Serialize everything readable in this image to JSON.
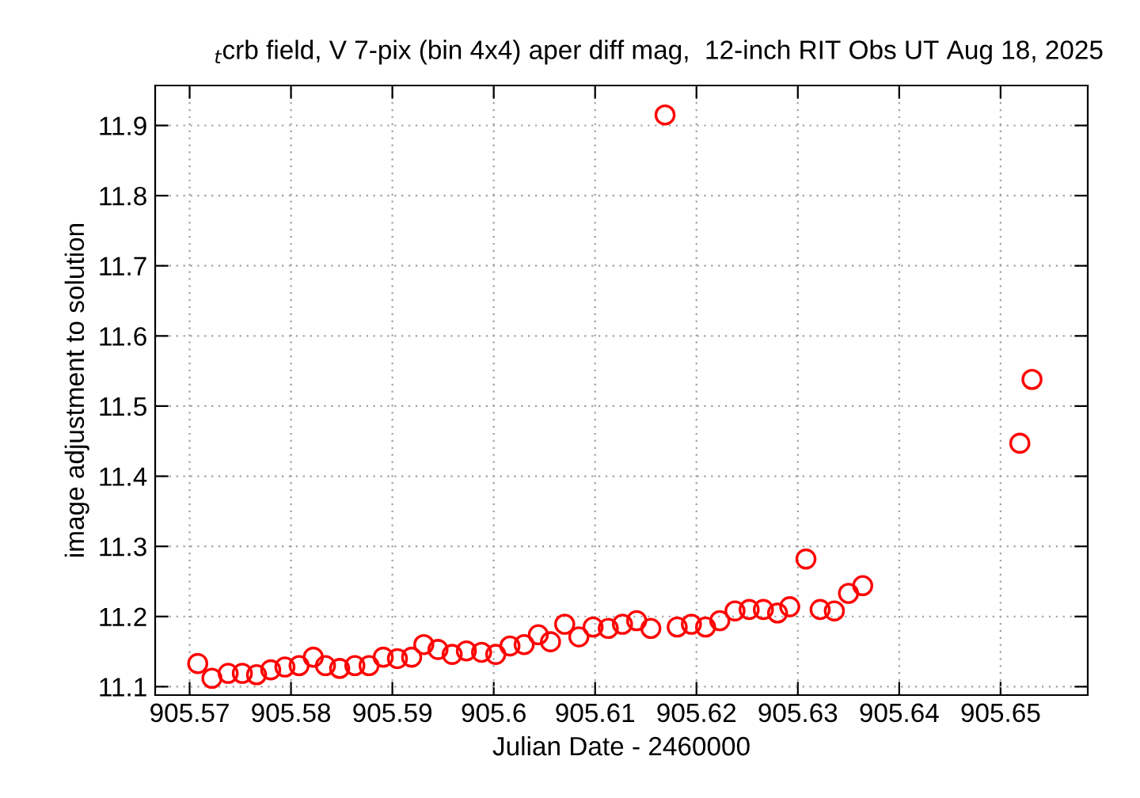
{
  "chart_data": {
    "type": "scatter",
    "title": "$_{t}$crb field, V 7-pix (bin 4x4) aper diff mag,  12-inch RIT Obs UT Aug 18, 2025",
    "xlabel": "Julian Date - 2460000",
    "ylabel": "image adjustment to solution",
    "series": [
      {
        "color": "#ff0000",
        "x": [
          905.5708,
          905.5722,
          905.5738,
          905.5752,
          905.5766,
          905.578,
          905.5794,
          905.5808,
          905.5822,
          905.5834,
          905.5848,
          905.5863,
          905.5877,
          905.5891,
          905.5905,
          905.5919,
          905.5931,
          905.5945,
          905.5959,
          905.5973,
          905.5988,
          905.6002,
          905.6016,
          905.603,
          905.6044,
          905.6056,
          905.607,
          905.6084,
          905.6098,
          905.6113,
          905.6127,
          905.6141,
          905.6155,
          905.6169,
          905.6181,
          905.6195,
          905.6209,
          905.6223,
          905.6238,
          905.6252,
          905.6266,
          905.628,
          905.6292,
          905.6308,
          905.6322,
          905.6336,
          905.635,
          905.6364,
          905.6519,
          905.6531
        ],
        "values": [
          11.133,
          11.112,
          11.119,
          11.119,
          11.117,
          11.124,
          11.128,
          11.13,
          11.142,
          11.13,
          11.126,
          11.13,
          11.13,
          11.142,
          11.14,
          11.142,
          11.16,
          11.153,
          11.146,
          11.151,
          11.149,
          11.146,
          11.158,
          11.16,
          11.174,
          11.164,
          11.189,
          11.171,
          11.185,
          11.183,
          11.189,
          11.194,
          11.183,
          11.915,
          11.185,
          11.189,
          11.185,
          11.194,
          11.208,
          11.21,
          11.21,
          11.205,
          11.214,
          11.282,
          11.21,
          11.208,
          11.233,
          11.244,
          11.447,
          11.538
        ]
      }
    ],
    "xlim": [
      905.5666,
      905.6586
    ],
    "ylim": [
      11.088,
      11.957
    ],
    "xticks": [
      905.57,
      905.58,
      905.59,
      905.6,
      905.61,
      905.62,
      905.63,
      905.64,
      905.65
    ],
    "yticks": [
      11.1,
      11.2,
      11.3,
      11.4,
      11.5,
      11.6,
      11.7,
      11.8,
      11.9
    ],
    "grid": true,
    "marker": "circle",
    "legend": false
  }
}
